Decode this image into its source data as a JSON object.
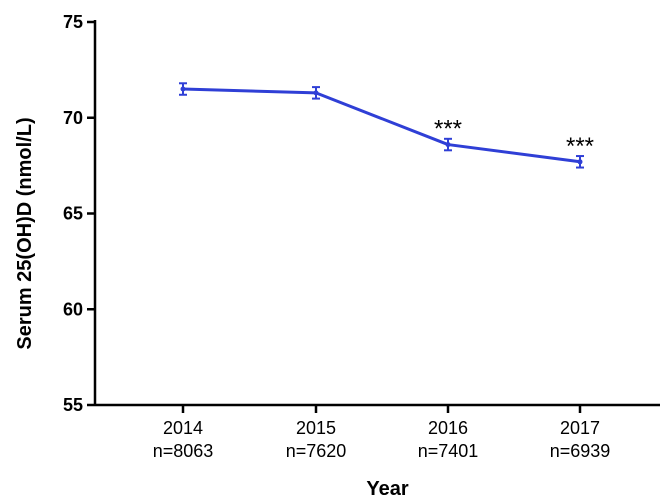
{
  "chart_data": {
    "type": "line",
    "xlabel": "Year",
    "ylabel": "Serum 25(OH)D (nmol/L)",
    "ylim": [
      55,
      75
    ],
    "yticks": [
      "55",
      "60",
      "65",
      "70",
      "75"
    ],
    "categories": [
      "2014",
      "2015",
      "2016",
      "2017"
    ],
    "sample_sizes": [
      "n=8063",
      "n=7620",
      "n=7401",
      "n=6939"
    ],
    "series": [
      {
        "values": [
          71.5,
          71.3,
          68.6,
          67.7
        ],
        "error": [
          0.3,
          0.3,
          0.3,
          0.3
        ],
        "color": "#2f3fd6"
      }
    ],
    "annotations": [
      "",
      "",
      "***",
      "***"
    ],
    "grid": false,
    "legend": "none"
  }
}
